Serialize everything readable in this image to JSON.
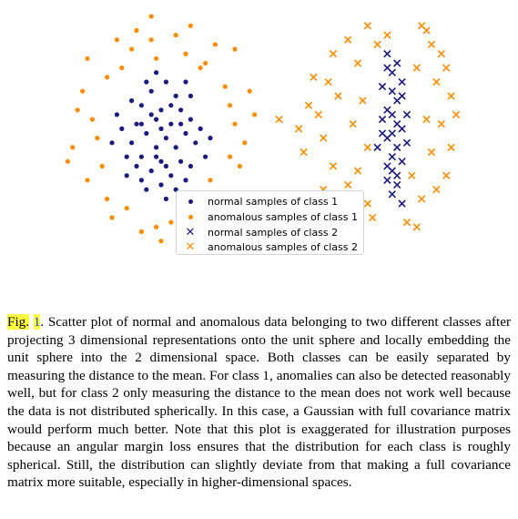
{
  "chart_data": {
    "type": "scatter",
    "title": "",
    "xlabel": "",
    "ylabel": "",
    "grid": false,
    "axes_visible": false,
    "xlim": [
      0,
      10
    ],
    "ylim": [
      0,
      5
    ],
    "legend_position": "bottom-center",
    "series": [
      {
        "name": "normal samples of class 1",
        "marker": "dot",
        "color": "#1a1a80",
        "points": [
          [
            3.1,
            3.6
          ],
          [
            2.8,
            3.4
          ],
          [
            3.3,
            3.3
          ],
          [
            2.6,
            3.1
          ],
          [
            3.0,
            3.0
          ],
          [
            3.4,
            3.0
          ],
          [
            2.9,
            2.8
          ],
          [
            3.2,
            2.7
          ],
          [
            2.5,
            2.7
          ],
          [
            3.6,
            2.8
          ],
          [
            2.7,
            2.5
          ],
          [
            3.1,
            2.4
          ],
          [
            3.5,
            2.5
          ],
          [
            2.4,
            2.3
          ],
          [
            2.9,
            2.2
          ],
          [
            3.3,
            2.2
          ],
          [
            3.7,
            2.3
          ],
          [
            2.6,
            2.0
          ],
          [
            3.0,
            1.9
          ],
          [
            3.4,
            1.9
          ],
          [
            2.8,
            1.7
          ],
          [
            3.2,
            1.6
          ],
          [
            3.6,
            1.8
          ],
          [
            2.5,
            1.8
          ],
          [
            3.0,
            1.4
          ],
          [
            2.7,
            1.3
          ],
          [
            3.3,
            1.3
          ],
          [
            2.2,
            2.6
          ],
          [
            3.8,
            2.6
          ],
          [
            2.3,
            2.0
          ],
          [
            3.9,
            2.0
          ],
          [
            2.9,
            3.8
          ],
          [
            2.4,
            3.2
          ],
          [
            3.6,
            3.3
          ],
          [
            2.1,
            2.9
          ],
          [
            3.1,
            1.1
          ],
          [
            2.6,
            1.5
          ],
          [
            3.5,
            1.5
          ],
          [
            2.0,
            2.3
          ],
          [
            4.0,
            2.4
          ],
          [
            2.8,
            2.9
          ],
          [
            3.2,
            3.1
          ],
          [
            2.6,
            2.7
          ],
          [
            3.4,
            2.7
          ],
          [
            3.0,
            2.6
          ],
          [
            2.9,
            2.0
          ],
          [
            3.1,
            1.8
          ],
          [
            2.7,
            3.6
          ],
          [
            3.5,
            3.6
          ],
          [
            2.3,
            1.6
          ]
        ]
      },
      {
        "name": "anomalous samples of class 1",
        "marker": "dot",
        "color": "#ff8c00",
        "points": [
          [
            2.8,
            5.0
          ],
          [
            2.9,
            4.1
          ],
          [
            2.4,
            4.3
          ],
          [
            3.5,
            4.2
          ],
          [
            4.1,
            4.4
          ],
          [
            4.3,
            3.5
          ],
          [
            1.9,
            3.7
          ],
          [
            1.4,
            3.4
          ],
          [
            1.2,
            2.2
          ],
          [
            1.6,
            2.8
          ],
          [
            4.5,
            2.7
          ],
          [
            4.6,
            1.8
          ],
          [
            1.5,
            1.5
          ],
          [
            1.9,
            1.1
          ],
          [
            2.3,
            0.9
          ],
          [
            3.2,
            0.6
          ],
          [
            3.8,
            0.9
          ],
          [
            4.2,
            1.2
          ],
          [
            2.6,
            0.4
          ],
          [
            3.0,
            0.2
          ],
          [
            2.2,
            3.9
          ],
          [
            3.8,
            3.9
          ],
          [
            4.4,
            3.1
          ],
          [
            1.7,
            2.4
          ],
          [
            4.7,
            2.3
          ],
          [
            4.0,
            1.5
          ],
          [
            1.8,
            1.8
          ],
          [
            2.1,
            4.5
          ],
          [
            3.3,
            4.6
          ],
          [
            3.9,
            4.0
          ],
          [
            1.3,
            3.0
          ],
          [
            4.8,
            3.4
          ],
          [
            4.5,
            4.3
          ],
          [
            2.5,
            4.7
          ],
          [
            3.6,
            4.8
          ],
          [
            1.1,
            1.9
          ],
          [
            3.4,
            0.8
          ],
          [
            2.0,
            0.7
          ],
          [
            2.9,
            0.5
          ],
          [
            4.3,
            0.7
          ],
          [
            4.9,
            2.9
          ],
          [
            1.5,
            4.1
          ],
          [
            3.7,
            0.3
          ],
          [
            4.4,
            2.0
          ],
          [
            2.8,
            4.5
          ]
        ]
      },
      {
        "name": "normal samples of class 2",
        "marker": "x",
        "color": "#1a1a80",
        "points": [
          [
            7.6,
            4.2
          ],
          [
            7.7,
            3.8
          ],
          [
            7.7,
            3.4
          ],
          [
            7.6,
            3.0
          ],
          [
            7.8,
            2.7
          ],
          [
            7.6,
            2.4
          ],
          [
            7.7,
            2.0
          ],
          [
            7.8,
            1.6
          ],
          [
            7.7,
            1.2
          ],
          [
            7.9,
            3.6
          ],
          [
            7.8,
            3.2
          ],
          [
            7.9,
            2.6
          ],
          [
            7.5,
            2.8
          ],
          [
            7.8,
            2.2
          ],
          [
            7.6,
            1.8
          ],
          [
            7.9,
            1.9
          ],
          [
            7.7,
            2.9
          ],
          [
            7.5,
            3.5
          ],
          [
            7.8,
            1.4
          ],
          [
            7.6,
            3.9
          ],
          [
            8.0,
            2.3
          ],
          [
            7.4,
            2.2
          ],
          [
            7.9,
            1.0
          ],
          [
            7.7,
            2.5
          ],
          [
            7.8,
            4.0
          ],
          [
            7.6,
            1.5
          ],
          [
            8.0,
            2.9
          ],
          [
            7.7,
            1.7
          ],
          [
            7.5,
            2.5
          ],
          [
            7.9,
            3.3
          ]
        ]
      },
      {
        "name": "anomalous samples of class 2",
        "marker": "x",
        "color": "#ff8c00",
        "points": [
          [
            7.2,
            4.8
          ],
          [
            7.6,
            4.6
          ],
          [
            8.3,
            4.8
          ],
          [
            8.5,
            4.4
          ],
          [
            8.6,
            3.6
          ],
          [
            8.9,
            3.3
          ],
          [
            8.7,
            2.7
          ],
          [
            8.5,
            2.1
          ],
          [
            8.8,
            1.6
          ],
          [
            8.3,
            1.1
          ],
          [
            8.0,
            0.6
          ],
          [
            7.2,
            1.0
          ],
          [
            6.8,
            1.4
          ],
          [
            6.5,
            1.8
          ],
          [
            6.3,
            2.4
          ],
          [
            6.0,
            3.1
          ],
          [
            6.1,
            3.7
          ],
          [
            6.5,
            4.2
          ],
          [
            6.8,
            4.5
          ],
          [
            5.4,
            2.8
          ],
          [
            5.8,
            2.6
          ],
          [
            6.6,
            3.3
          ],
          [
            7.1,
            3.2
          ],
          [
            7.2,
            2.2
          ],
          [
            7.0,
            1.7
          ],
          [
            8.2,
            3.9
          ],
          [
            8.4,
            2.8
          ],
          [
            8.1,
            1.6
          ],
          [
            8.7,
            4.2
          ],
          [
            9.0,
            2.9
          ],
          [
            6.6,
            0.9
          ],
          [
            7.3,
            0.7
          ],
          [
            8.2,
            0.5
          ],
          [
            7.0,
            4.0
          ],
          [
            6.3,
            1.3
          ],
          [
            8.8,
            3.9
          ],
          [
            6.9,
            2.7
          ],
          [
            8.6,
            1.3
          ],
          [
            6.2,
            2.9
          ],
          [
            7.4,
            4.4
          ],
          [
            8.4,
            4.7
          ],
          [
            6.4,
            3.6
          ],
          [
            8.9,
            2.2
          ],
          [
            7.0,
            0.4
          ],
          [
            5.9,
            2.1
          ]
        ]
      }
    ]
  },
  "caption": {
    "fig_label": "Fig.",
    "fig_number": "1",
    "text": ". Scatter plot of normal and anomalous data belonging to two different classes after projecting 3 dimensional representations onto the unit sphere and locally embedding the unit sphere into the 2 dimensional space. Both classes can be easily separated by measuring the distance to the mean. For class 1, anomalies can also be detected reasonably well, but for class 2 only measuring the distance to the mean does not work well because the data is not distributed spherically. In this case, a Gaussian with full covariance matrix would perform much better. Note that this plot is exaggerated for illustration purposes because an angular margin loss ensures that the distribution for each class is roughly spherical. Still, the distribution can slightly deviate from that making a full covariance matrix more suitable, especially in higher-dimensional spaces."
  }
}
